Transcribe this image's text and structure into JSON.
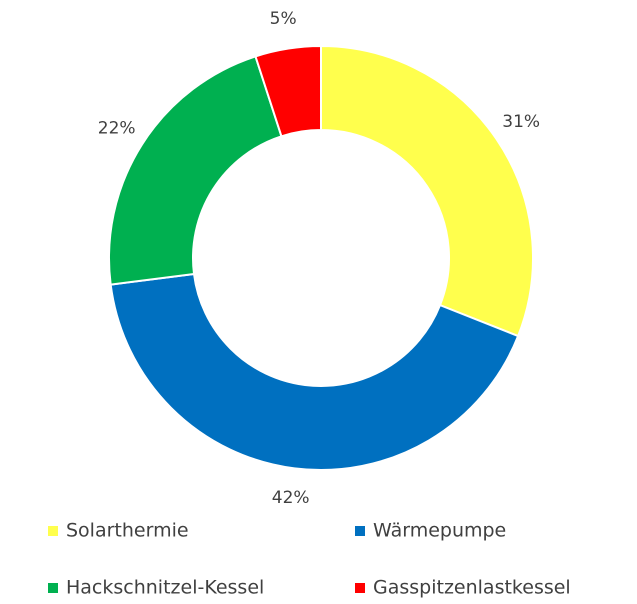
{
  "chart_data": {
    "type": "donut",
    "categories": [
      "Solarthermie",
      "Wärmepumpe",
      "Hackschnitzel-Kessel",
      "Gasspitzenlastkessel"
    ],
    "values": [
      31,
      42,
      22,
      5
    ],
    "value_labels": [
      "31%",
      "42%",
      "22%",
      "5%"
    ],
    "colors": [
      "#ffff4d",
      "#0070c0",
      "#00b050",
      "#ff0000"
    ],
    "legend": "bottom"
  }
}
